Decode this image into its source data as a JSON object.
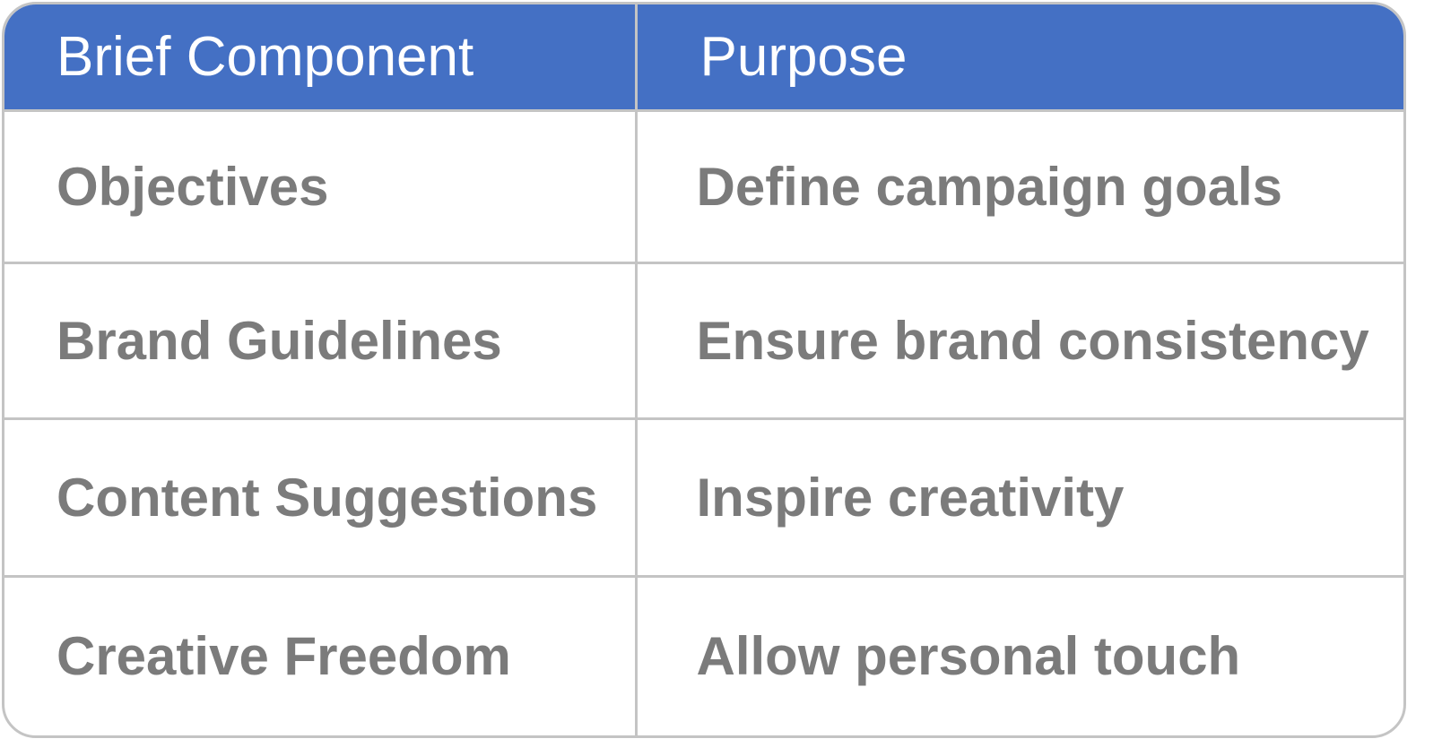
{
  "table": {
    "headers": [
      "Brief Component",
      "Purpose"
    ],
    "rows": [
      [
        "Objectives",
        "Define campaign goals"
      ],
      [
        "Brand Guidelines",
        "Ensure brand consistency"
      ],
      [
        "Content Suggestions",
        "Inspire creativity"
      ],
      [
        "Creative Freedom",
        "Allow personal touch"
      ]
    ]
  },
  "colors": {
    "header_background": "#4470c4",
    "header_text": "#ffffff",
    "cell_text": "#7b7b7b",
    "border": "#c4c4c4"
  }
}
